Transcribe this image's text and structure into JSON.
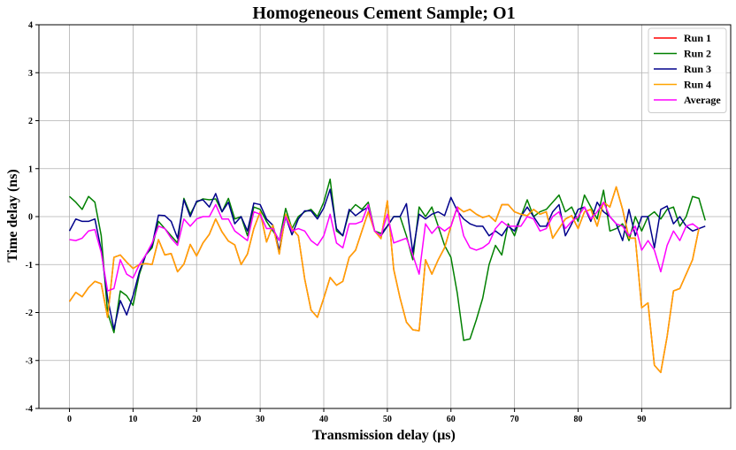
{
  "chart_data": {
    "type": "line",
    "title": "Homogeneous Cement Sample; O1",
    "xlabel": "Transmission delay (μs)",
    "ylabel": "Time delay (ns)",
    "xlim": [
      -4.8,
      104
    ],
    "ylim": [
      -4,
      4
    ],
    "xticks": [
      0,
      10,
      20,
      30,
      40,
      50,
      60,
      70,
      80,
      90
    ],
    "yticks": [
      -4,
      -3,
      -2,
      -1,
      0,
      1,
      2,
      3,
      4
    ],
    "grid": true,
    "legend_position": "top-right",
    "x_start": 0,
    "x_step": 1,
    "series": [
      {
        "name": "Run 1",
        "color": "#ff0000",
        "values": [
          -1.77,
          -1.58,
          -1.67,
          -1.48,
          -1.35,
          -1.4,
          -2.1,
          -0.85,
          -0.8,
          -0.95,
          -1.08,
          -1.0,
          -0.98,
          -1.0,
          -0.48,
          -0.8,
          -0.77,
          -1.15,
          -0.99,
          -0.58,
          -0.82,
          -0.55,
          -0.37,
          -0.05,
          -0.32,
          -0.51,
          -0.59,
          -1.0,
          -0.78,
          -0.25,
          0.1,
          -0.53,
          -0.18,
          -0.78,
          0.05,
          -0.25,
          -0.4,
          -1.3,
          -1.95,
          -2.1,
          -1.7,
          -1.27,
          -1.43,
          -1.35,
          -0.85,
          -0.7,
          -0.3,
          0.1,
          -0.3,
          -0.46,
          0.33,
          -1.1,
          -1.7,
          -2.2,
          -2.36,
          -2.38,
          -0.9,
          -1.2,
          -0.9,
          -0.65,
          -0.2,
          0.2,
          0.1,
          0.15,
          0.05,
          -0.02,
          0.02,
          -0.1,
          0.25,
          0.25,
          0.1,
          0.05,
          0.02,
          0.15,
          0.05,
          0.1,
          -0.45,
          -0.25,
          -0.05,
          0.02,
          -0.25,
          0.1,
          0.15,
          -0.2,
          0.3,
          0.2,
          0.62,
          0.15,
          -0.45,
          -0.45,
          -1.9,
          -1.8,
          -3.1,
          -3.25,
          -2.5,
          -1.55,
          -1.5,
          -1.2,
          -0.9,
          -0.25
        ]
      },
      {
        "name": "Run 2",
        "color": "#008000",
        "values": [
          0.42,
          0.3,
          0.15,
          0.42,
          0.3,
          -0.4,
          -2.0,
          -2.42,
          -1.55,
          -1.65,
          -1.85,
          -1.2,
          -0.8,
          -0.65,
          -0.1,
          -0.25,
          -0.4,
          -0.55,
          0.38,
          0.05,
          0.3,
          0.37,
          0.35,
          0.37,
          0.1,
          0.38,
          -0.05,
          0.0,
          -0.4,
          0.2,
          0.15,
          -0.1,
          -0.3,
          -0.5,
          0.17,
          -0.25,
          0.0,
          0.1,
          0.15,
          0.0,
          0.3,
          0.78,
          -0.3,
          -0.4,
          0.1,
          0.25,
          0.15,
          0.3,
          -0.3,
          -0.35,
          -0.2,
          0.0,
          0.0,
          -0.4,
          -0.9,
          0.2,
          0.0,
          0.2,
          -0.2,
          -0.6,
          -0.85,
          -1.6,
          -2.58,
          -2.55,
          -2.15,
          -1.7,
          -1.0,
          -0.6,
          -0.8,
          -0.15,
          -0.4,
          0.0,
          0.35,
          0.0,
          0.1,
          0.15,
          0.3,
          0.45,
          0.1,
          0.2,
          -0.1,
          0.45,
          0.2,
          -0.05,
          0.55,
          -0.3,
          -0.25,
          -0.15,
          -0.5,
          0.0,
          -0.3,
          0.0,
          0.1,
          -0.05,
          0.15,
          0.2,
          -0.2,
          0.0,
          0.42,
          0.38,
          -0.08
        ]
      },
      {
        "name": "Run 3",
        "color": "#00008b",
        "values": [
          -0.3,
          -0.05,
          -0.1,
          -0.1,
          -0.05,
          -0.7,
          -1.7,
          -2.35,
          -1.75,
          -2.05,
          -1.65,
          -1.15,
          -0.8,
          -0.6,
          0.03,
          0.02,
          -0.1,
          -0.45,
          0.35,
          0.0,
          0.32,
          0.35,
          0.2,
          0.48,
          0.1,
          0.3,
          -0.15,
          0.0,
          -0.3,
          0.28,
          0.25,
          -0.05,
          -0.18,
          -0.7,
          0.0,
          -0.38,
          -0.05,
          0.12,
          0.12,
          -0.05,
          0.18,
          0.57,
          -0.25,
          -0.4,
          0.15,
          0.02,
          0.12,
          0.2,
          -0.3,
          -0.4,
          -0.2,
          0.0,
          0.0,
          0.27,
          -0.75,
          0.05,
          -0.05,
          0.05,
          0.1,
          0.02,
          0.4,
          0.12,
          -0.05,
          -0.15,
          -0.2,
          -0.2,
          -0.4,
          -0.3,
          -0.4,
          -0.2,
          -0.3,
          0.0,
          0.2,
          0.0,
          -0.2,
          -0.2,
          0.1,
          0.25,
          -0.4,
          -0.15,
          0.15,
          0.2,
          -0.1,
          0.3,
          0.1,
          0.0,
          -0.15,
          -0.5,
          0.15,
          -0.4,
          0.0,
          0.0,
          -0.65,
          0.15,
          0.22,
          -0.15,
          0.0,
          -0.2,
          -0.3,
          -0.25,
          -0.2
        ]
      },
      {
        "name": "Run 4",
        "color": "#ffa500",
        "values": [
          -1.77,
          -1.58,
          -1.67,
          -1.48,
          -1.35,
          -1.4,
          -2.1,
          -0.85,
          -0.8,
          -0.95,
          -1.08,
          -1.0,
          -0.98,
          -1.0,
          -0.48,
          -0.8,
          -0.77,
          -1.15,
          -0.99,
          -0.58,
          -0.82,
          -0.55,
          -0.37,
          -0.05,
          -0.32,
          -0.51,
          -0.59,
          -1.0,
          -0.78,
          -0.25,
          0.1,
          -0.53,
          -0.18,
          -0.78,
          0.05,
          -0.25,
          -0.4,
          -1.3,
          -1.95,
          -2.1,
          -1.7,
          -1.27,
          -1.43,
          -1.35,
          -0.85,
          -0.7,
          -0.3,
          0.1,
          -0.3,
          -0.46,
          0.33,
          -1.1,
          -1.7,
          -2.2,
          -2.36,
          -2.38,
          -0.9,
          -1.2,
          -0.9,
          -0.65,
          -0.2,
          0.2,
          0.1,
          0.15,
          0.05,
          -0.02,
          0.02,
          -0.1,
          0.25,
          0.25,
          0.1,
          0.05,
          0.02,
          0.15,
          0.05,
          0.1,
          -0.45,
          -0.25,
          -0.05,
          0.02,
          -0.25,
          0.1,
          0.15,
          -0.2,
          0.3,
          0.2,
          0.62,
          0.15,
          -0.45,
          -0.45,
          -1.9,
          -1.8,
          -3.1,
          -3.25,
          -2.5,
          -1.55,
          -1.5,
          -1.2,
          -0.9,
          -0.25
        ]
      },
      {
        "name": "Average",
        "color": "#ff00ff",
        "values": [
          -0.48,
          -0.5,
          -0.45,
          -0.3,
          -0.27,
          -0.75,
          -1.55,
          -1.5,
          -0.9,
          -1.2,
          -1.28,
          -1.0,
          -0.8,
          -0.55,
          -0.2,
          -0.25,
          -0.45,
          -0.6,
          -0.05,
          -0.2,
          -0.05,
          0.0,
          0.0,
          0.25,
          -0.05,
          -0.05,
          -0.3,
          -0.4,
          -0.5,
          0.1,
          0.05,
          -0.25,
          -0.25,
          -0.5,
          0.0,
          -0.3,
          -0.25,
          -0.3,
          -0.5,
          -0.6,
          -0.4,
          0.05,
          -0.55,
          -0.65,
          -0.15,
          -0.15,
          -0.1,
          0.25,
          -0.3,
          -0.4,
          0.05,
          -0.55,
          -0.5,
          -0.45,
          -0.8,
          -1.2,
          -0.15,
          -0.35,
          -0.2,
          -0.3,
          -0.2,
          0.2,
          -0.4,
          -0.65,
          -0.7,
          -0.65,
          -0.55,
          -0.25,
          -0.1,
          -0.2,
          -0.2,
          -0.2,
          0.0,
          -0.05,
          -0.3,
          -0.25,
          0.0,
          0.1,
          -0.25,
          -0.1,
          0.0,
          0.2,
          -0.05,
          0.1,
          0.3,
          0.0,
          -0.15,
          -0.2,
          -0.4,
          -0.2,
          -0.7,
          -0.5,
          -0.7,
          -1.15,
          -0.6,
          -0.3,
          -0.5,
          -0.2,
          -0.15,
          -0.25
        ]
      }
    ]
  }
}
